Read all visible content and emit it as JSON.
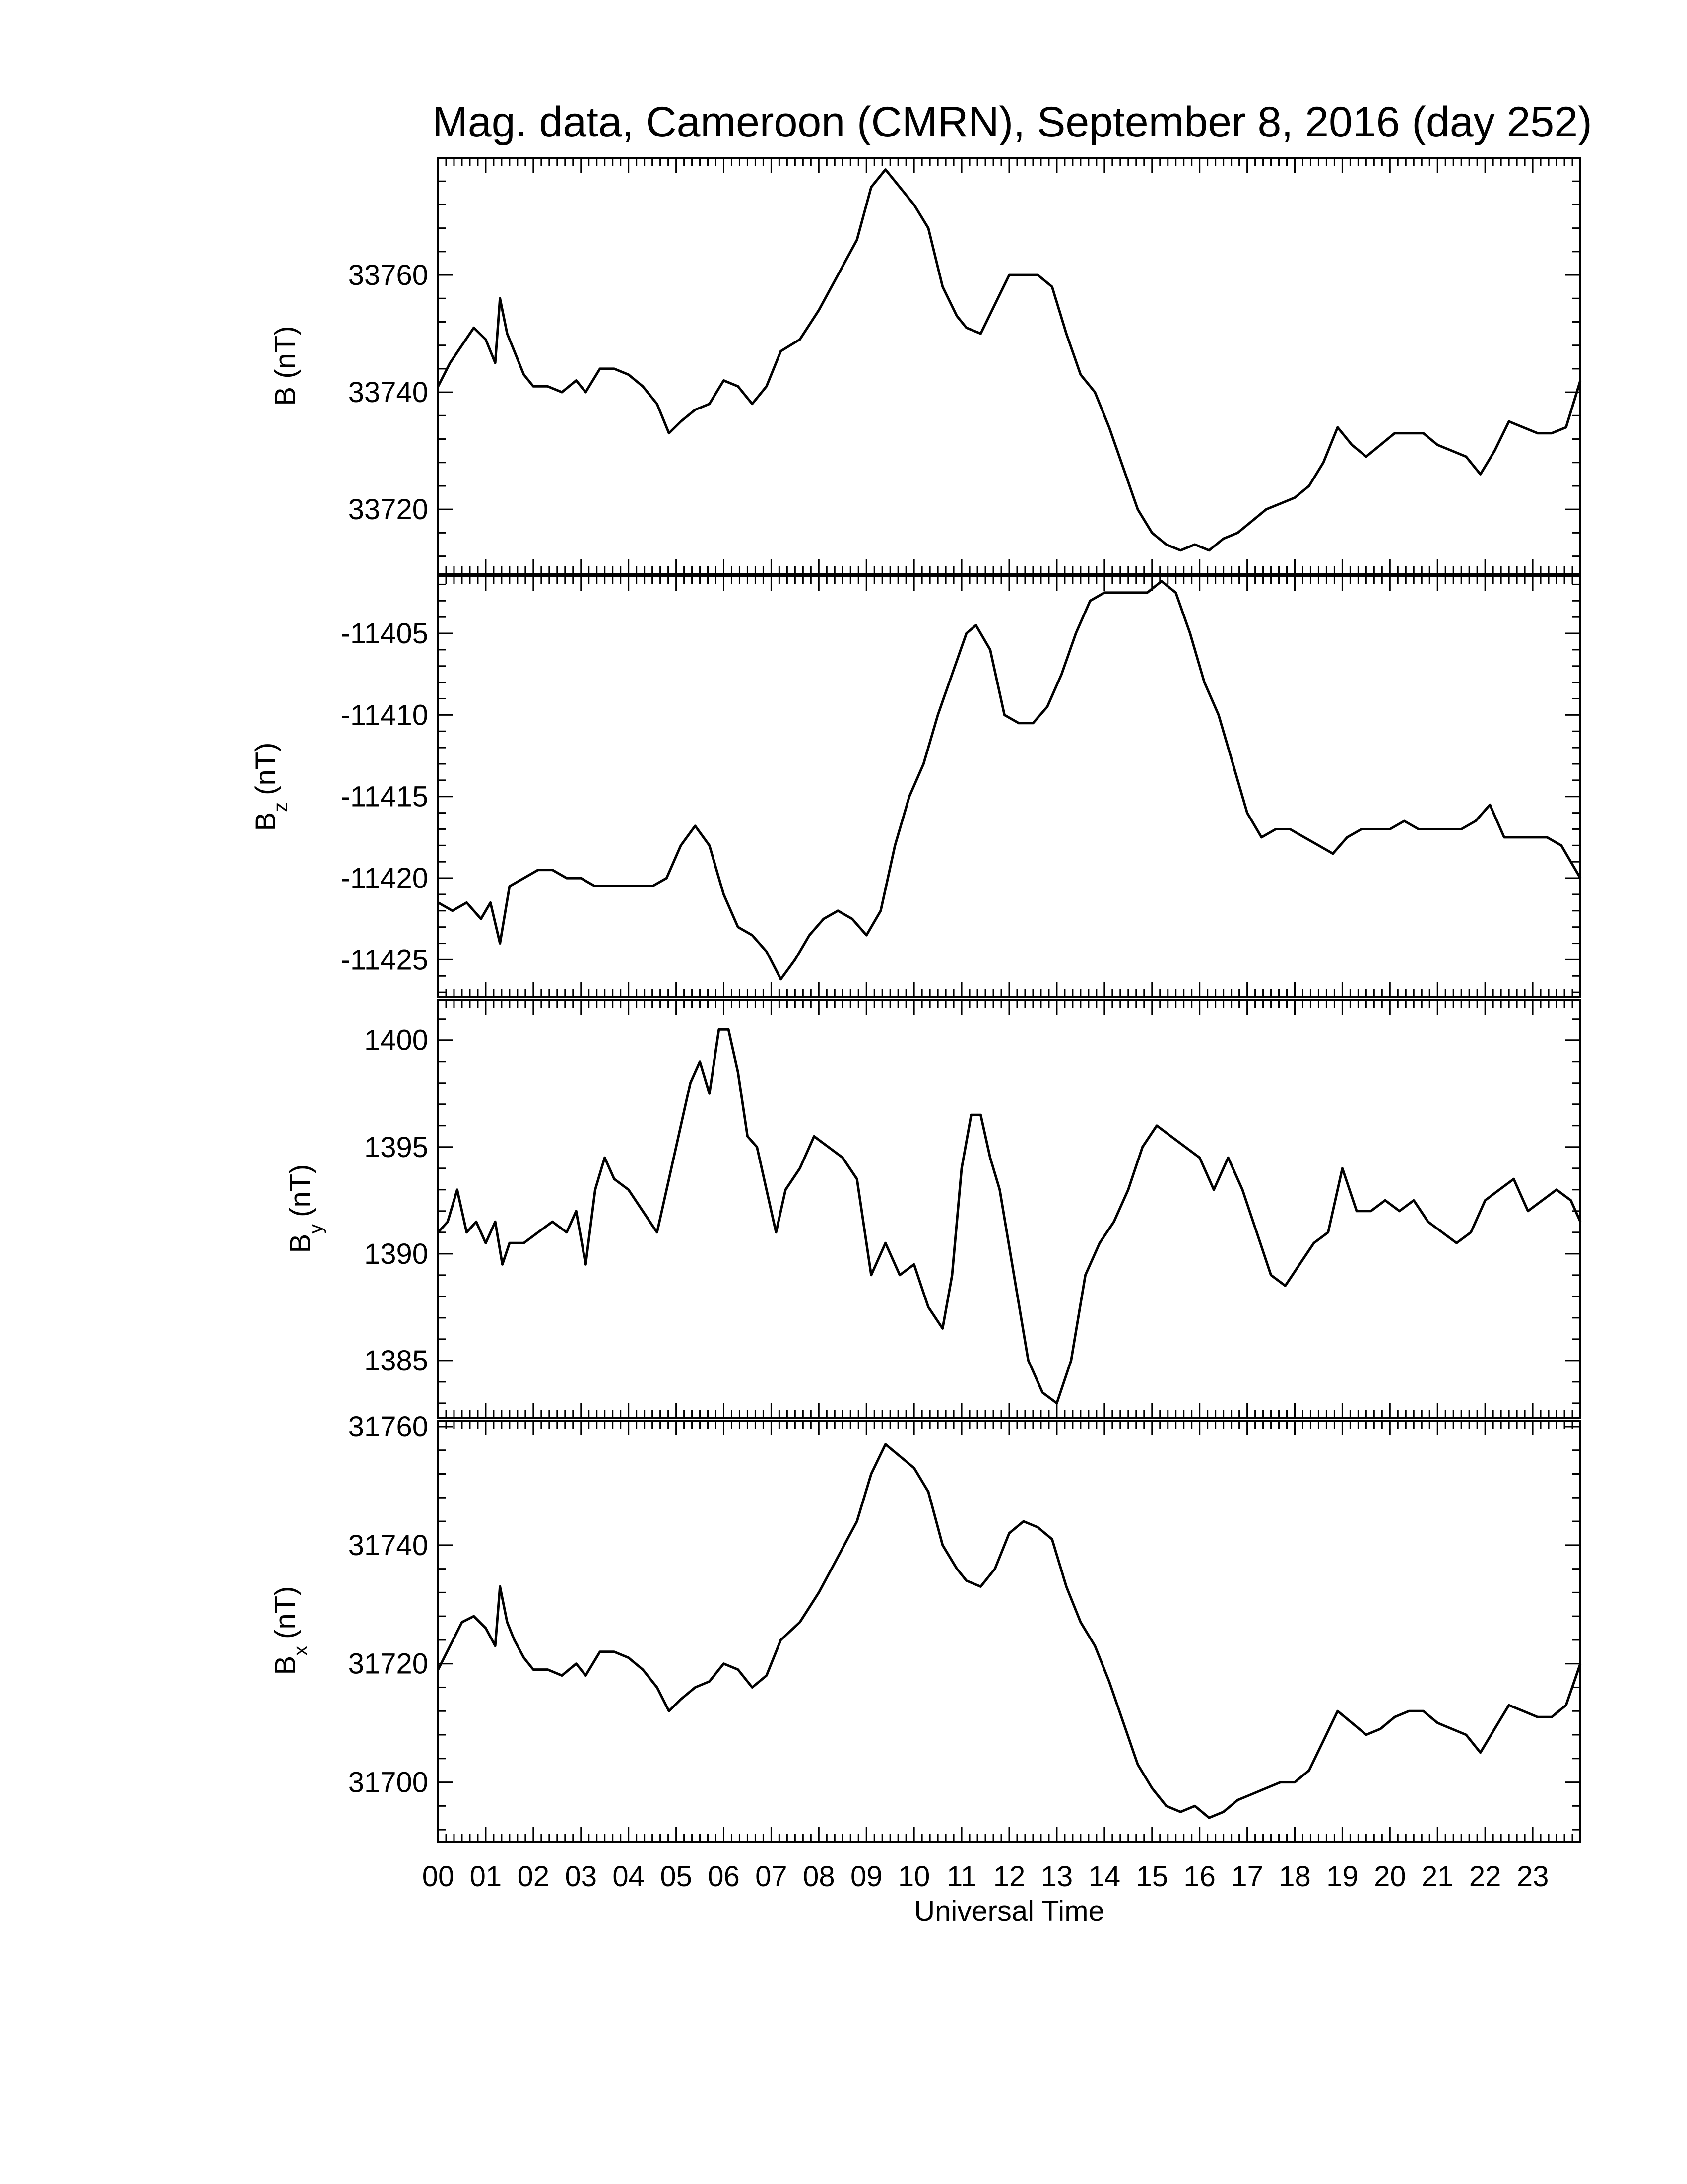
{
  "chart_data": {
    "title": "Mag. data, Cameroon (CMRN), September 8, 2016 (day 252)",
    "xlabel": "Universal Time",
    "x_ticks": [
      "00",
      "01",
      "02",
      "03",
      "04",
      "05",
      "06",
      "07",
      "08",
      "09",
      "10",
      "11",
      "12",
      "13",
      "14",
      "15",
      "16",
      "17",
      "18",
      "19",
      "20",
      "21",
      "22",
      "23"
    ],
    "xlim": [
      0,
      24
    ],
    "panels": [
      {
        "type": "line",
        "ylabel": "B (nT)",
        "ylabel_sub": "",
        "ylim": [
          33709,
          33780
        ],
        "yticks": [
          33720,
          33740,
          33760
        ],
        "x": [
          0,
          0.25,
          0.5,
          0.75,
          1.0,
          1.2,
          1.3,
          1.45,
          1.6,
          1.8,
          2.0,
          2.3,
          2.6,
          2.9,
          3.1,
          3.4,
          3.7,
          4.0,
          4.3,
          4.6,
          4.85,
          5.1,
          5.4,
          5.7,
          6.0,
          6.3,
          6.6,
          6.9,
          7.2,
          7.6,
          8.0,
          8.4,
          8.8,
          9.1,
          9.4,
          9.7,
          10.0,
          10.3,
          10.6,
          10.9,
          11.1,
          11.4,
          11.7,
          12.0,
          12.3,
          12.6,
          12.9,
          13.2,
          13.5,
          13.8,
          14.1,
          14.4,
          14.7,
          15.0,
          15.3,
          15.6,
          15.9,
          16.2,
          16.5,
          16.8,
          17.1,
          17.4,
          17.7,
          18.0,
          18.3,
          18.6,
          18.9,
          19.2,
          19.5,
          19.8,
          20.1,
          20.4,
          20.7,
          21.0,
          21.3,
          21.6,
          21.9,
          22.2,
          22.5,
          22.8,
          23.1,
          23.4,
          23.7,
          24.0
        ],
        "y": [
          33741,
          33745,
          33748,
          33751,
          33749,
          33745,
          33756,
          33750,
          33747,
          33743,
          33741,
          33741,
          33740,
          33742,
          33740,
          33744,
          33744,
          33743,
          33741,
          33738,
          33733,
          33735,
          33737,
          33738,
          33742,
          33741,
          33738,
          33741,
          33747,
          33749,
          33754,
          33760,
          33766,
          33775,
          33778,
          33775,
          33772,
          33768,
          33758,
          33753,
          33751,
          33750,
          33755,
          33760,
          33760,
          33760,
          33758,
          33750,
          33743,
          33740,
          33734,
          33727,
          33720,
          33716,
          33714,
          33713,
          33714,
          33713,
          33715,
          33716,
          33718,
          33720,
          33721,
          33722,
          33724,
          33728,
          33734,
          33731,
          33729,
          33731,
          33733,
          33733,
          33733,
          33731,
          33730,
          33729,
          33726,
          33730,
          33735,
          33734,
          33733,
          33733,
          33734,
          33742
        ]
      },
      {
        "type": "line",
        "ylabel": "B",
        "ylabel_sub": "z",
        "ylabel_unit": "(nT)",
        "ylim": [
          -11427.3,
          -11401.5
        ],
        "yticks": [
          -11425,
          -11420,
          -11415,
          -11410,
          -11405
        ],
        "ytick_labels": [
          "-11425",
          "-11420",
          "-11415",
          "-11410",
          "-11405"
        ],
        "x": [
          0,
          0.3,
          0.6,
          0.9,
          1.1,
          1.3,
          1.5,
          1.8,
          2.1,
          2.4,
          2.7,
          3.0,
          3.3,
          3.6,
          3.9,
          4.2,
          4.5,
          4.8,
          5.1,
          5.4,
          5.7,
          6.0,
          6.3,
          6.6,
          6.9,
          7.2,
          7.5,
          7.8,
          8.1,
          8.4,
          8.7,
          9.0,
          9.3,
          9.6,
          9.9,
          10.2,
          10.5,
          10.8,
          11.1,
          11.3,
          11.6,
          11.9,
          12.2,
          12.5,
          12.8,
          13.1,
          13.4,
          13.7,
          14.0,
          14.3,
          14.6,
          14.9,
          15.2,
          15.5,
          15.8,
          16.1,
          16.4,
          16.7,
          17.0,
          17.3,
          17.6,
          17.9,
          18.2,
          18.5,
          18.8,
          19.1,
          19.4,
          19.7,
          20.0,
          20.3,
          20.6,
          20.9,
          21.2,
          21.5,
          21.8,
          22.1,
          22.4,
          22.7,
          23.0,
          23.3,
          23.6,
          24.0
        ],
        "y": [
          -11421.5,
          -11422,
          -11421.5,
          -11422.5,
          -11421.5,
          -11424,
          -11420.5,
          -11420,
          -11419.5,
          -11419.5,
          -11420,
          -11420,
          -11420.5,
          -11420.5,
          -11420.5,
          -11420.5,
          -11420.5,
          -11420,
          -11418,
          -11416.8,
          -11418,
          -11421,
          -11423,
          -11423.5,
          -11424.5,
          -11426.2,
          -11425,
          -11423.5,
          -11422.5,
          -11422,
          -11422.5,
          -11423.5,
          -11422,
          -11418,
          -11415,
          -11413,
          -11410,
          -11407.5,
          -11405,
          -11404.5,
          -11406,
          -11410,
          -11410.5,
          -11410.5,
          -11409.5,
          -11407.5,
          -11405,
          -11403,
          -11402.5,
          -11402.5,
          -11402.5,
          -11402.5,
          -11401.8,
          -11402.5,
          -11405,
          -11408,
          -11410,
          -11413,
          -11416,
          -11417.5,
          -11417,
          -11417,
          -11417.5,
          -11418,
          -11418.5,
          -11417.5,
          -11417,
          -11417,
          -11417,
          -11416.5,
          -11417,
          -11417,
          -11417,
          -11417,
          -11416.5,
          -11415.5,
          -11417.5,
          -11417.5,
          -11417.5,
          -11417.5,
          -11418,
          -11420
        ]
      },
      {
        "type": "line",
        "ylabel": "B",
        "ylabel_sub": "y",
        "ylabel_unit": "(nT)",
        "ylim": [
          1382.3,
          1401.9
        ],
        "yticks": [
          1385,
          1390,
          1395,
          1400
        ],
        "x": [
          0,
          0.2,
          0.4,
          0.6,
          0.8,
          1.0,
          1.2,
          1.35,
          1.5,
          1.8,
          2.1,
          2.4,
          2.7,
          2.9,
          3.1,
          3.3,
          3.5,
          3.7,
          4.0,
          4.3,
          4.6,
          4.8,
          5.0,
          5.3,
          5.5,
          5.7,
          5.9,
          6.1,
          6.3,
          6.5,
          6.7,
          6.9,
          7.1,
          7.3,
          7.6,
          7.9,
          8.2,
          8.5,
          8.8,
          9.1,
          9.4,
          9.7,
          10.0,
          10.3,
          10.6,
          10.8,
          11.0,
          11.2,
          11.4,
          11.6,
          11.8,
          12.1,
          12.4,
          12.7,
          13.0,
          13.3,
          13.6,
          13.9,
          14.2,
          14.5,
          14.8,
          15.1,
          15.4,
          15.7,
          16.0,
          16.3,
          16.6,
          16.9,
          17.2,
          17.5,
          17.8,
          18.1,
          18.4,
          18.7,
          19.0,
          19.3,
          19.6,
          19.9,
          20.2,
          20.5,
          20.8,
          21.1,
          21.4,
          21.7,
          22.0,
          22.3,
          22.6,
          22.9,
          23.2,
          23.5,
          23.8,
          24.0
        ],
        "y": [
          1391,
          1391.5,
          1393,
          1391,
          1391.5,
          1390.5,
          1391.5,
          1389.5,
          1390.5,
          1390.5,
          1391,
          1391.5,
          1391,
          1392,
          1389.5,
          1393,
          1394.5,
          1393.5,
          1393,
          1392,
          1391,
          1393,
          1395,
          1398,
          1399,
          1397.5,
          1400.5,
          1400.5,
          1398.5,
          1395.5,
          1395,
          1393,
          1391,
          1393,
          1394,
          1395.5,
          1395,
          1394.5,
          1393.5,
          1389,
          1390.5,
          1389,
          1389.5,
          1387.5,
          1386.5,
          1389,
          1394,
          1396.5,
          1396.5,
          1394.5,
          1393,
          1389,
          1385,
          1383.5,
          1383,
          1385,
          1389,
          1390.5,
          1391.5,
          1393,
          1395,
          1396,
          1395.5,
          1395,
          1394.5,
          1393,
          1394.5,
          1393,
          1391,
          1389,
          1388.5,
          1389.5,
          1390.5,
          1391,
          1394,
          1392,
          1392,
          1392.5,
          1392,
          1392.5,
          1391.5,
          1391,
          1390.5,
          1391,
          1392.5,
          1393,
          1393.5,
          1392,
          1392.5,
          1393,
          1392.5,
          1391.5
        ]
      },
      {
        "type": "line",
        "ylabel": "B",
        "ylabel_sub": "x",
        "ylabel_unit": "(nT)",
        "ylim": [
          31690,
          31761
        ],
        "yticks": [
          31700,
          31720,
          31740,
          31760
        ],
        "x": [
          0,
          0.25,
          0.5,
          0.75,
          1.0,
          1.2,
          1.3,
          1.45,
          1.6,
          1.8,
          2.0,
          2.3,
          2.6,
          2.9,
          3.1,
          3.4,
          3.7,
          4.0,
          4.3,
          4.6,
          4.85,
          5.1,
          5.4,
          5.7,
          6.0,
          6.3,
          6.6,
          6.9,
          7.2,
          7.6,
          8.0,
          8.4,
          8.8,
          9.1,
          9.4,
          9.7,
          10.0,
          10.3,
          10.6,
          10.9,
          11.1,
          11.4,
          11.7,
          12.0,
          12.3,
          12.6,
          12.9,
          13.2,
          13.5,
          13.8,
          14.1,
          14.4,
          14.7,
          15.0,
          15.3,
          15.6,
          15.9,
          16.2,
          16.5,
          16.8,
          17.1,
          17.4,
          17.7,
          18.0,
          18.3,
          18.6,
          18.9,
          19.2,
          19.5,
          19.8,
          20.1,
          20.4,
          20.7,
          21.0,
          21.3,
          21.6,
          21.9,
          22.2,
          22.5,
          22.8,
          23.1,
          23.4,
          23.7,
          24.0
        ],
        "y": [
          31719,
          31723,
          31727,
          31728,
          31726,
          31723,
          31733,
          31727,
          31724,
          31721,
          31719,
          31719,
          31718,
          31720,
          31718,
          31722,
          31722,
          31721,
          31719,
          31716,
          31712,
          31714,
          31716,
          31717,
          31720,
          31719,
          31716,
          31718,
          31724,
          31727,
          31732,
          31738,
          31744,
          31752,
          31757,
          31755,
          31753,
          31749,
          31740,
          31736,
          31734,
          31733,
          31736,
          31742,
          31744,
          31743,
          31741,
          31733,
          31727,
          31723,
          31717,
          31710,
          31703,
          31699,
          31696,
          31695,
          31696,
          31694,
          31695,
          31697,
          31698,
          31699,
          31700,
          31700,
          31702,
          31707,
          31712,
          31710,
          31708,
          31709,
          31711,
          31712,
          31712,
          31710,
          31709,
          31708,
          31705,
          31709,
          31713,
          31712,
          31711,
          31711,
          31713,
          31720
        ]
      }
    ]
  }
}
